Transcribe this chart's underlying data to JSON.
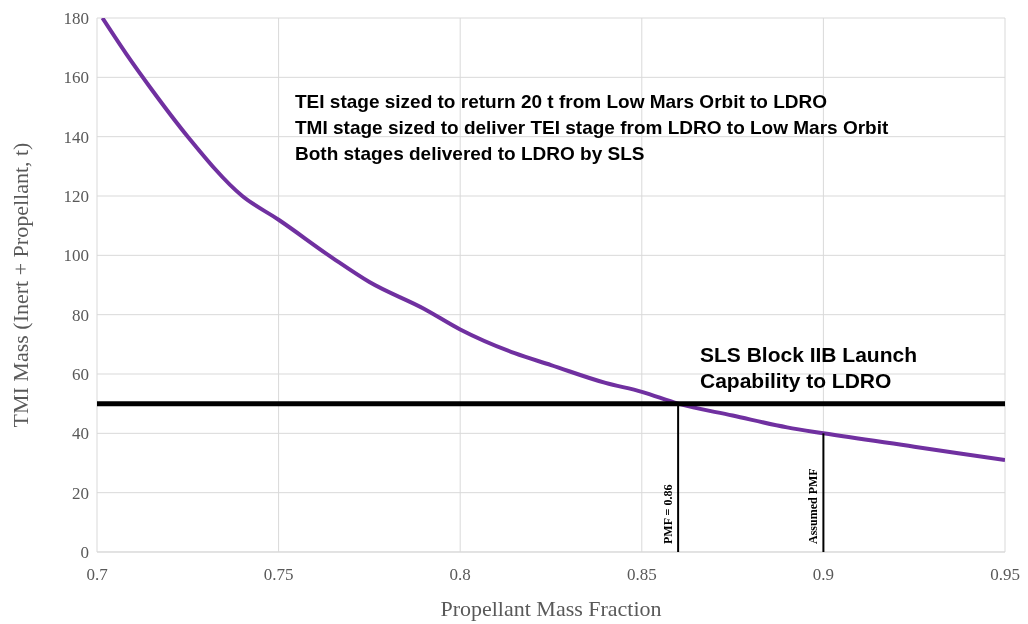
{
  "chart_data": {
    "type": "line",
    "xlabel": "Propellant Mass Fraction",
    "ylabel": "TMI Mass (Inert + Propellant, t)",
    "x": [
      0.7015,
      0.708,
      0.715,
      0.725,
      0.74,
      0.75,
      0.765,
      0.775,
      0.79,
      0.8,
      0.815,
      0.825,
      0.84,
      0.85,
      0.86,
      0.875,
      0.89,
      0.9,
      0.925,
      0.95
    ],
    "series": [
      {
        "color": "#7030a0",
        "values": [
          180,
          168,
          156,
          140,
          120,
          112,
          99,
          91,
          82,
          75,
          67,
          63,
          57,
          54,
          50,
          46,
          42,
          40,
          35.5,
          31
        ]
      }
    ],
    "xlim": [
      0.7,
      0.95
    ],
    "xticks": [
      0.7,
      0.75,
      0.8,
      0.85,
      0.9,
      0.95
    ],
    "ylim": [
      0,
      180
    ],
    "yticks": [
      0,
      20,
      40,
      60,
      80,
      100,
      120,
      140,
      160,
      180
    ],
    "grid": true,
    "line_style": "solid",
    "marker": "none",
    "ref_lines": [
      {
        "axis": "y",
        "value": 50,
        "label": "SLS Block IIB Launch Capability  to LDRO",
        "color": "#000000"
      },
      {
        "axis": "x",
        "value": 0.86,
        "label": "PMF = 0.86",
        "color": "#000000"
      },
      {
        "axis": "x",
        "value": 0.9,
        "label": "Assumed PMF",
        "color": "#000000"
      }
    ],
    "annotations": [
      "TEI stage sized to return 20 t from Low Mars Orbit to LDRO",
      "TMI stage sized to deliver TEI stage from LDRO to Low Mars Orbit",
      "Both stages delivered to LDRO by SLS"
    ]
  }
}
